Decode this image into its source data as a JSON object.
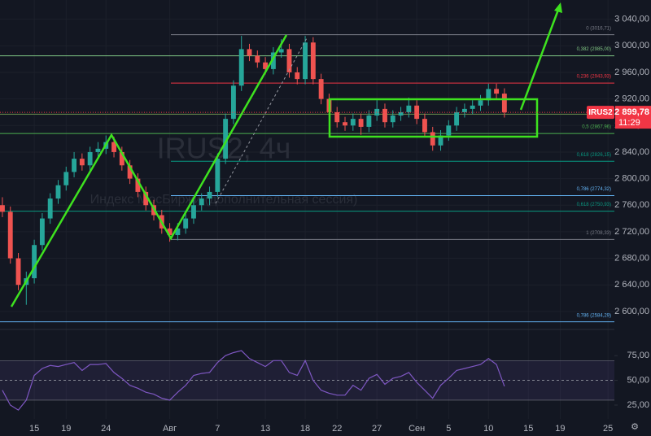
{
  "chart_data": {
    "type": "candlestick",
    "watermark_title": "IRUS2, 4ч",
    "watermark_subtitle": "Индекс МосБиржи (дополнительная сессия)",
    "x": [
      -4,
      -3,
      -2,
      -1,
      0,
      1,
      2,
      3,
      4,
      5,
      6,
      7,
      8,
      9,
      10,
      11,
      12,
      13,
      14,
      15,
      16,
      17,
      18,
      19,
      20,
      21,
      22,
      23,
      24,
      25,
      26,
      27,
      28,
      29,
      30,
      31,
      32,
      33,
      34,
      35,
      36,
      37,
      38,
      39,
      40,
      41,
      42,
      43,
      44,
      45,
      46,
      47,
      48,
      49,
      50,
      51,
      52,
      53,
      54,
      55,
      56,
      57,
      58,
      59
    ],
    "open": [
      2760,
      2750,
      2680,
      2640,
      2650,
      2700,
      2740,
      2770,
      2790,
      2810,
      2830,
      2820,
      2840,
      2845,
      2855,
      2840,
      2820,
      2800,
      2780,
      2760,
      2745,
      2725,
      2715,
      2725,
      2740,
      2760,
      2770,
      2780,
      2830,
      2890,
      2940,
      2995,
      2985,
      2975,
      2965,
      2990,
      2995,
      2960,
      2950,
      3005,
      2950,
      2920,
      2900,
      2885,
      2880,
      2890,
      2878,
      2895,
      2905,
      2885,
      2895,
      2900,
      2910,
      2890,
      2870,
      2850,
      2865,
      2880,
      2900,
      2905,
      2910,
      2918,
      2935,
      2928
    ],
    "high": [
      2772,
      2758,
      2688,
      2660,
      2708,
      2748,
      2778,
      2798,
      2818,
      2840,
      2838,
      2848,
      2855,
      2865,
      2863,
      2848,
      2828,
      2808,
      2788,
      2768,
      2753,
      2733,
      2733,
      2748,
      2768,
      2778,
      2788,
      2838,
      2898,
      2948,
      3015,
      3003,
      2993,
      2983,
      2998,
      3010,
      3003,
      2968,
      3015,
      3013,
      2958,
      2928,
      2908,
      2893,
      2898,
      2898,
      2903,
      2918,
      2913,
      2903,
      2908,
      2922,
      2918,
      2898,
      2878,
      2873,
      2888,
      2908,
      2913,
      2918,
      2926,
      2943,
      2943,
      2936
    ],
    "low": [
      2742,
      2672,
      2632,
      2610,
      2642,
      2692,
      2732,
      2762,
      2782,
      2802,
      2812,
      2812,
      2832,
      2837,
      2832,
      2812,
      2792,
      2772,
      2752,
      2737,
      2717,
      2705,
      2707,
      2717,
      2732,
      2752,
      2760,
      2772,
      2822,
      2882,
      2932,
      2977,
      2967,
      2957,
      2957,
      2982,
      2952,
      2942,
      2942,
      2942,
      2912,
      2892,
      2877,
      2872,
      2872,
      2866,
      2870,
      2887,
      2877,
      2877,
      2887,
      2892,
      2882,
      2862,
      2842,
      2842,
      2857,
      2872,
      2892,
      2897,
      2902,
      2910,
      2920,
      2892
    ],
    "close": [
      2750,
      2680,
      2640,
      2650,
      2700,
      2740,
      2770,
      2790,
      2810,
      2830,
      2820,
      2840,
      2845,
      2855,
      2840,
      2820,
      2800,
      2780,
      2760,
      2745,
      2725,
      2715,
      2725,
      2740,
      2760,
      2770,
      2780,
      2830,
      2890,
      2940,
      2995,
      2985,
      2975,
      2965,
      2990,
      2995,
      2960,
      2950,
      3005,
      2950,
      2920,
      2900,
      2885,
      2880,
      2890,
      2878,
      2895,
      2905,
      2885,
      2895,
      2900,
      2910,
      2890,
      2870,
      2850,
      2865,
      2880,
      2900,
      2905,
      2910,
      2918,
      2935,
      2928,
      2899.78
    ],
    "up_color": "#26a69a",
    "down_color": "#ef5350",
    "xlim": [
      -4.3,
      72.8
    ],
    "xticks": [
      {
        "value": 0,
        "label": "15"
      },
      {
        "value": 4,
        "label": "19"
      },
      {
        "value": 9,
        "label": "24"
      },
      {
        "value": 17,
        "label": "Авг"
      },
      {
        "value": 23,
        "label": "7"
      },
      {
        "value": 29,
        "label": "13"
      },
      {
        "value": 34,
        "label": "18"
      },
      {
        "value": 38,
        "label": "22"
      },
      {
        "value": 43,
        "label": "27"
      },
      {
        "value": 48,
        "label": "Сен"
      },
      {
        "value": 52,
        "label": "5"
      },
      {
        "value": 57,
        "label": "10"
      },
      {
        "value": 62,
        "label": "15"
      },
      {
        "value": 66,
        "label": "19"
      },
      {
        "value": 72,
        "label": "25"
      }
    ],
    "ylim": [
      2579,
      3069
    ],
    "yticks": [
      {
        "value": 3040,
        "label": "3 040,00"
      },
      {
        "value": 3000,
        "label": "3 000,00"
      },
      {
        "value": 2960,
        "label": "2 960,00"
      },
      {
        "value": 2920,
        "label": "2 920,00"
      },
      {
        "value": 2880,
        "label": "2 880,00"
      },
      {
        "value": 2840,
        "label": "2 840,00"
      },
      {
        "value": 2800,
        "label": "2 800,00"
      },
      {
        "value": 2760,
        "label": "2 760,00"
      },
      {
        "value": 2720,
        "label": "2 720,00"
      },
      {
        "value": 2680,
        "label": "2 680,00"
      },
      {
        "value": 2640,
        "label": "2 640,00"
      },
      {
        "value": 2600,
        "label": "2 600,00"
      }
    ],
    "grid": true,
    "last_price": {
      "value": 2899.78,
      "label": "2 899,78",
      "symbol": "IRUS2",
      "timer": "11:29",
      "color": "#f23645"
    },
    "fib_sets": [
      {
        "levels": [
          {
            "value": 3016.71,
            "label": "0 (3016,71)",
            "color": "#787b86"
          },
          {
            "value": 2943.93,
            "label": "0,236 (2943,93)",
            "color": "#f23645"
          },
          {
            "value": 2826.15,
            "label": "0,618 (2826,15)",
            "color": "#089981"
          },
          {
            "value": 2774.32,
            "label": "0,786 (2774,32)",
            "color": "#64b5f6"
          },
          {
            "value": 2708.33,
            "label": "1 (2708,33)",
            "color": "#787b86"
          }
        ]
      },
      {
        "levels": [
          {
            "value": 2985.0,
            "label": "0,382 (2985,00)",
            "color": "#81c784"
          },
          {
            "value": 2897,
            "color": "#6b8f4e"
          },
          {
            "value": 2867.96,
            "label": "0,5 (2867,96)",
            "color": "#4caf50"
          },
          {
            "value": 2750.93,
            "label": "0,618 (2750,93)",
            "color": "#089981"
          },
          {
            "value": 2584.29,
            "label": "0,786 (2584,29)",
            "color": "#64b5f6"
          }
        ]
      }
    ],
    "rsi": {
      "color": "#7e57c2",
      "values": [
        40,
        25,
        20,
        30,
        55,
        62,
        65,
        64,
        66,
        68,
        60,
        66,
        66,
        67,
        58,
        52,
        45,
        42,
        38,
        36,
        32,
        30,
        38,
        45,
        55,
        57,
        58,
        68,
        75,
        78,
        80,
        72,
        68,
        64,
        70,
        70,
        58,
        55,
        70,
        50,
        40,
        37,
        35,
        35,
        45,
        40,
        52,
        56,
        46,
        52,
        54,
        58,
        48,
        40,
        32,
        45,
        52,
        60,
        62,
        64,
        66,
        72,
        66,
        44
      ],
      "ylim": [
        11,
        99
      ],
      "yticks": [
        {
          "value": 75,
          "label": "75,00"
        },
        {
          "value": 50,
          "label": "50,00"
        },
        {
          "value": 25,
          "label": "25,00"
        }
      ],
      "band": [
        30,
        70
      ],
      "mid": 50
    }
  }
}
